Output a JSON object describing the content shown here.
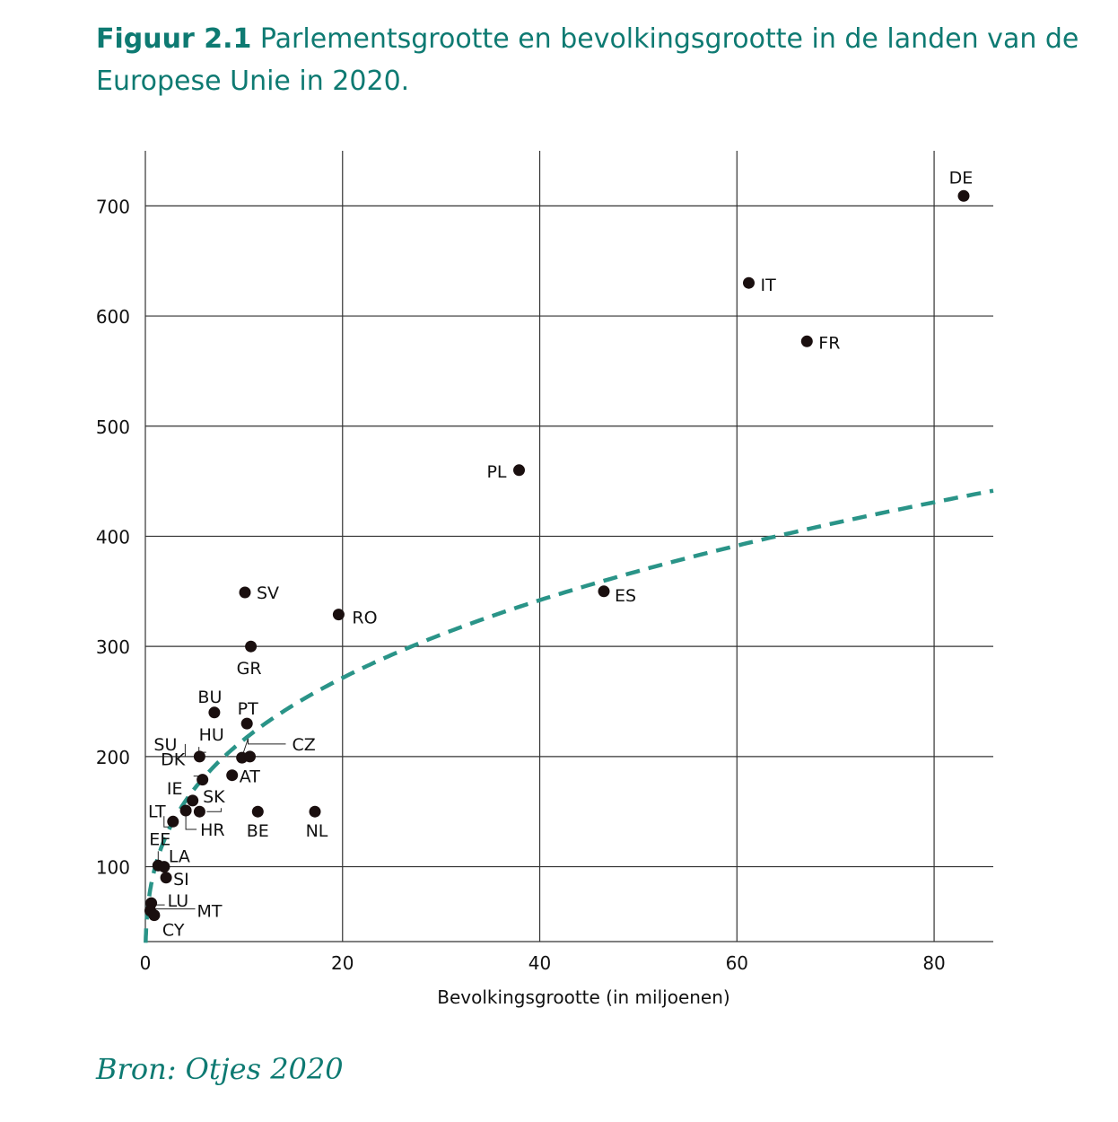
{
  "caption": {
    "label": "Figuur 2.1",
    "text": "Parlementsgrootte en bevolkingsgrootte in de landen van de Europese Unie in 2020."
  },
  "source": "Bron: Otjes 2020",
  "colors": {
    "accent": "#0e7a72",
    "trend": "#2a9488",
    "point": "#1a0f0f",
    "grid": "#333333"
  },
  "chart_data": {
    "type": "scatter",
    "xlabel": "Bevolkingsgrootte (in miljoenen)",
    "ylabel": "",
    "xlim": [
      0,
      86
    ],
    "ylim": [
      32,
      750
    ],
    "x_ticks": [
      0,
      20,
      40,
      60,
      80
    ],
    "y_ticks": [
      100,
      200,
      300,
      400,
      500,
      600,
      700
    ],
    "y_tick_labels": [
      "100",
      "200",
      "300",
      "400",
      "500",
      "600",
      "700"
    ],
    "grid": true,
    "trend_line": {
      "style": "dashed",
      "form": "cube-root",
      "coefficient": 100
    },
    "points": [
      {
        "label": "DE",
        "x": 83.0,
        "y": 709
      },
      {
        "label": "IT",
        "x": 61.2,
        "y": 630
      },
      {
        "label": "FR",
        "x": 67.1,
        "y": 577
      },
      {
        "label": "PL",
        "x": 37.9,
        "y": 460
      },
      {
        "label": "ES",
        "x": 46.5,
        "y": 350
      },
      {
        "label": "SV",
        "x": 10.1,
        "y": 349
      },
      {
        "label": "RO",
        "x": 19.6,
        "y": 329
      },
      {
        "label": "GR",
        "x": 10.7,
        "y": 300
      },
      {
        "label": "BU",
        "x": 7.0,
        "y": 240
      },
      {
        "label": "PT",
        "x": 10.3,
        "y": 230
      },
      {
        "label": "HU",
        "x": 9.8,
        "y": 199
      },
      {
        "label": "CZ",
        "x": 10.6,
        "y": 200
      },
      {
        "label": "SU",
        "x": 5.5,
        "y": 200
      },
      {
        "label": "DK",
        "x": 5.8,
        "y": 179
      },
      {
        "label": "AT",
        "x": 8.8,
        "y": 183
      },
      {
        "label": "IE",
        "x": 4.8,
        "y": 160
      },
      {
        "label": "SK",
        "x": 5.5,
        "y": 150
      },
      {
        "label": "HR",
        "x": 4.1,
        "y": 151
      },
      {
        "label": "BE",
        "x": 11.4,
        "y": 150
      },
      {
        "label": "NL",
        "x": 17.2,
        "y": 150
      },
      {
        "label": "LT",
        "x": 2.8,
        "y": 141
      },
      {
        "label": "EE",
        "x": 1.3,
        "y": 101
      },
      {
        "label": "LA",
        "x": 1.9,
        "y": 100
      },
      {
        "label": "SI",
        "x": 2.1,
        "y": 90
      },
      {
        "label": "LU",
        "x": 0.6,
        "y": 67
      },
      {
        "label": "MT",
        "x": 0.5,
        "y": 60
      },
      {
        "label": "CY",
        "x": 0.9,
        "y": 56
      }
    ]
  }
}
